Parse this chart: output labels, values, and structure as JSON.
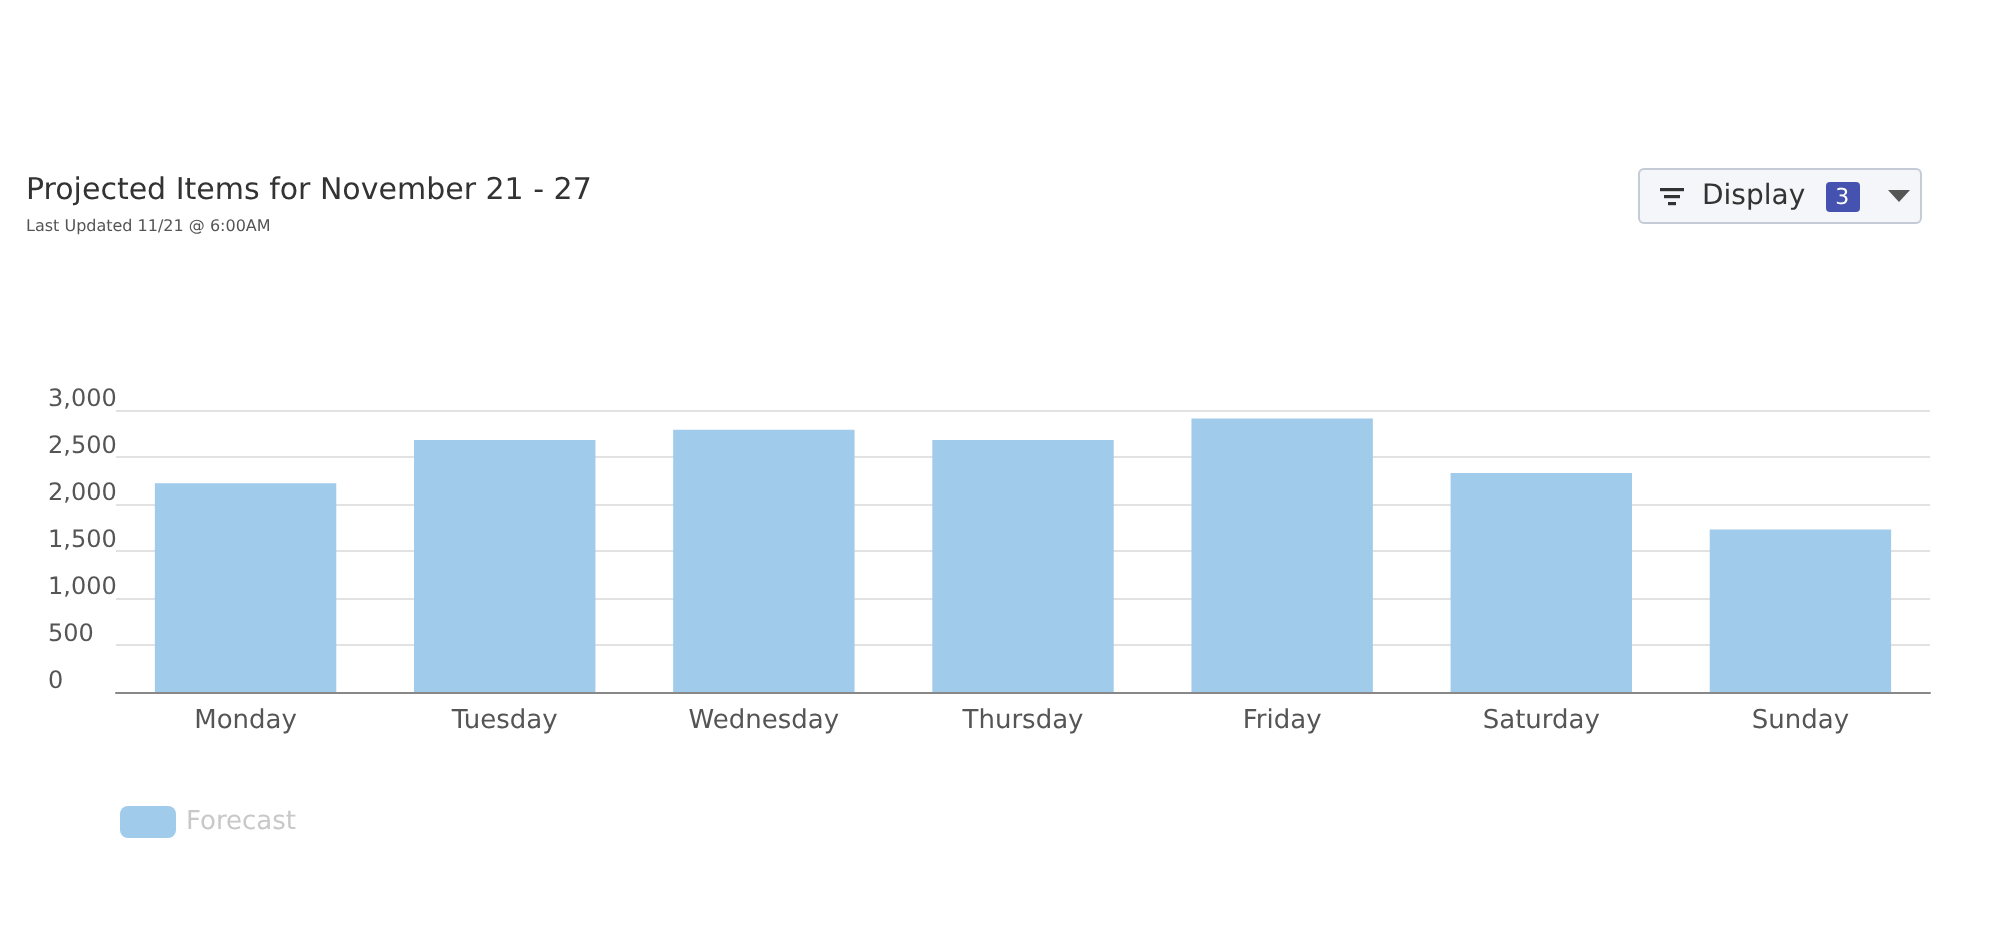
{
  "chart_data": {
    "type": "bar",
    "title": "Projected Items for November 21 - 27",
    "subtitle": "Last Updated 11/21 @ 6:00AM",
    "annotations": [
      "Display",
      "3"
    ],
    "categories": [
      "Monday",
      "Tuesday",
      "Wednesday",
      "Thursday",
      "Friday",
      "Saturday",
      "Sunday"
    ],
    "series": [
      {
        "name": "Forecast",
        "color": "#a0cbea",
        "values": [
          2220,
          2680,
          2790,
          2680,
          2910,
          2330,
          1730
        ]
      }
    ],
    "ylim": [
      0,
      3000
    ],
    "yticks": [
      0,
      {
        "value": 500,
        "label": "500"
      },
      {
        "value": 1000,
        "label": "1,000"
      },
      {
        "value": 1500,
        "label": "1,500"
      },
      {
        "value": 2000,
        "label": "2,000"
      },
      {
        "value": 2500,
        "label": "2,500"
      },
      {
        "value": 3000,
        "label": "3,000"
      }
    ],
    "grid": "y",
    "legend": "bottom left"
  }
}
